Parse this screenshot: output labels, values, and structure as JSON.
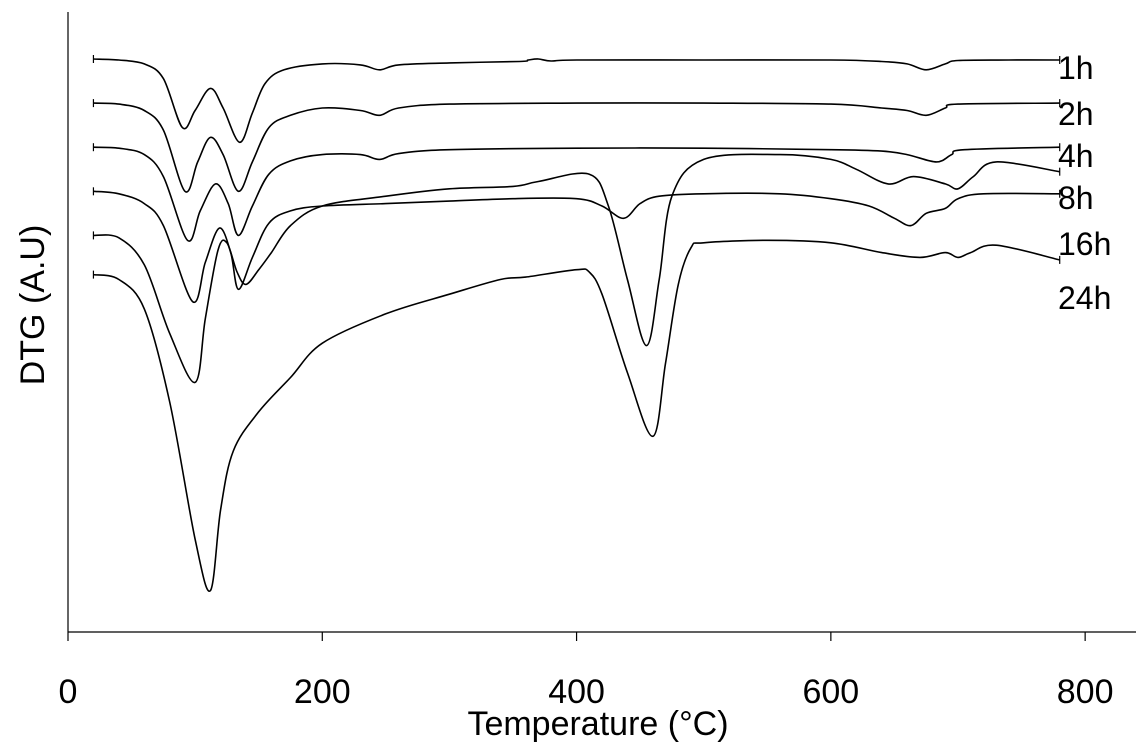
{
  "chart_data": {
    "type": "line",
    "title": "",
    "xlabel": "Temperature (°C)",
    "ylabel": "DTG (A.U)",
    "xlim": [
      0,
      840
    ],
    "ylim": [
      -11.7,
      0.9
    ],
    "x_ticks": [
      0,
      200,
      400,
      600,
      800
    ],
    "x_tick_labels": [
      "0",
      "200",
      "400",
      "600",
      "800"
    ],
    "y_ticks_shown": false,
    "grid": false,
    "legend": "none (series named by labels at right end of each curve)",
    "series": [
      {
        "name": "1h",
        "points": [
          [
            20,
            0.0
          ],
          [
            40,
            -0.02
          ],
          [
            60,
            -0.1
          ],
          [
            75,
            -0.4
          ],
          [
            90,
            -1.4
          ],
          [
            100,
            -1.05
          ],
          [
            112,
            -0.6
          ],
          [
            122,
            -1.0
          ],
          [
            135,
            -1.7
          ],
          [
            145,
            -1.1
          ],
          [
            155,
            -0.5
          ],
          [
            170,
            -0.22
          ],
          [
            200,
            -0.1
          ],
          [
            230,
            -0.12
          ],
          [
            245,
            -0.22
          ],
          [
            260,
            -0.12
          ],
          [
            300,
            -0.08
          ],
          [
            355,
            -0.05
          ],
          [
            362,
            -0.02
          ],
          [
            370,
            0.0
          ],
          [
            380,
            -0.04
          ],
          [
            400,
            -0.02
          ],
          [
            500,
            -0.02
          ],
          [
            600,
            -0.02
          ],
          [
            640,
            -0.05
          ],
          [
            660,
            -0.1
          ],
          [
            675,
            -0.22
          ],
          [
            690,
            -0.1
          ],
          [
            700,
            -0.03
          ],
          [
            740,
            -0.02
          ],
          [
            780,
            -0.02
          ]
        ]
      },
      {
        "name": "2h",
        "points": [
          [
            20,
            -0.9
          ],
          [
            40,
            -0.92
          ],
          [
            60,
            -1.05
          ],
          [
            75,
            -1.45
          ],
          [
            92,
            -2.7
          ],
          [
            102,
            -2.1
          ],
          [
            112,
            -1.6
          ],
          [
            122,
            -1.95
          ],
          [
            134,
            -2.7
          ],
          [
            145,
            -2.1
          ],
          [
            158,
            -1.4
          ],
          [
            175,
            -1.15
          ],
          [
            200,
            -1.0
          ],
          [
            230,
            -1.05
          ],
          [
            245,
            -1.15
          ],
          [
            260,
            -1.0
          ],
          [
            300,
            -0.92
          ],
          [
            400,
            -0.9
          ],
          [
            500,
            -0.9
          ],
          [
            600,
            -0.92
          ],
          [
            640,
            -1.0
          ],
          [
            660,
            -1.05
          ],
          [
            675,
            -1.15
          ],
          [
            690,
            -1.0
          ],
          [
            700,
            -0.92
          ],
          [
            780,
            -0.9
          ]
        ]
      },
      {
        "name": "4h",
        "points": [
          [
            20,
            -1.8
          ],
          [
            40,
            -1.82
          ],
          [
            60,
            -1.95
          ],
          [
            75,
            -2.4
          ],
          [
            94,
            -3.7
          ],
          [
            104,
            -3.1
          ],
          [
            116,
            -2.55
          ],
          [
            126,
            -2.95
          ],
          [
            134,
            -3.6
          ],
          [
            145,
            -3.0
          ],
          [
            158,
            -2.35
          ],
          [
            175,
            -2.08
          ],
          [
            200,
            -1.95
          ],
          [
            230,
            -1.95
          ],
          [
            245,
            -2.05
          ],
          [
            260,
            -1.93
          ],
          [
            300,
            -1.85
          ],
          [
            400,
            -1.82
          ],
          [
            500,
            -1.82
          ],
          [
            600,
            -1.85
          ],
          [
            640,
            -1.88
          ],
          [
            660,
            -1.95
          ],
          [
            683,
            -2.1
          ],
          [
            695,
            -1.95
          ],
          [
            705,
            -1.85
          ],
          [
            780,
            -1.8
          ]
        ]
      },
      {
        "name": "8h",
        "points": [
          [
            20,
            -2.7
          ],
          [
            40,
            -2.75
          ],
          [
            60,
            -2.95
          ],
          [
            75,
            -3.4
          ],
          [
            98,
            -4.95
          ],
          [
            108,
            -4.15
          ],
          [
            119,
            -3.45
          ],
          [
            128,
            -3.95
          ],
          [
            134,
            -4.7
          ],
          [
            145,
            -4.05
          ],
          [
            158,
            -3.35
          ],
          [
            175,
            -3.1
          ],
          [
            200,
            -3.0
          ],
          [
            250,
            -2.95
          ],
          [
            300,
            -2.9
          ],
          [
            350,
            -2.85
          ],
          [
            400,
            -2.85
          ],
          [
            420,
            -3.0
          ],
          [
            437,
            -3.25
          ],
          [
            450,
            -2.95
          ],
          [
            465,
            -2.8
          ],
          [
            500,
            -2.75
          ],
          [
            560,
            -2.75
          ],
          [
            600,
            -2.85
          ],
          [
            630,
            -3.0
          ],
          [
            650,
            -3.25
          ],
          [
            663,
            -3.4
          ],
          [
            675,
            -3.15
          ],
          [
            690,
            -3.05
          ],
          [
            700,
            -2.85
          ],
          [
            720,
            -2.75
          ],
          [
            780,
            -2.75
          ]
        ]
      },
      {
        "name": "16h",
        "points": [
          [
            20,
            -3.6
          ],
          [
            40,
            -3.65
          ],
          [
            60,
            -4.2
          ],
          [
            80,
            -5.6
          ],
          [
            100,
            -6.6
          ],
          [
            108,
            -5.3
          ],
          [
            118,
            -3.9
          ],
          [
            125,
            -3.75
          ],
          [
            133,
            -4.35
          ],
          [
            140,
            -4.6
          ],
          [
            150,
            -4.3
          ],
          [
            160,
            -3.95
          ],
          [
            175,
            -3.4
          ],
          [
            200,
            -3.0
          ],
          [
            250,
            -2.8
          ],
          [
            300,
            -2.65
          ],
          [
            350,
            -2.6
          ],
          [
            370,
            -2.5
          ],
          [
            410,
            -2.35
          ],
          [
            425,
            -3.0
          ],
          [
            440,
            -4.5
          ],
          [
            455,
            -5.85
          ],
          [
            465,
            -4.5
          ],
          [
            475,
            -2.8
          ],
          [
            500,
            -2.05
          ],
          [
            560,
            -1.95
          ],
          [
            600,
            -2.05
          ],
          [
            620,
            -2.25
          ],
          [
            645,
            -2.55
          ],
          [
            665,
            -2.4
          ],
          [
            690,
            -2.55
          ],
          [
            700,
            -2.65
          ],
          [
            712,
            -2.4
          ],
          [
            730,
            -2.1
          ],
          [
            780,
            -2.3
          ]
        ]
      },
      {
        "name": "24h",
        "points": [
          [
            20,
            -4.4
          ],
          [
            40,
            -4.5
          ],
          [
            60,
            -5.1
          ],
          [
            80,
            -7.0
          ],
          [
            100,
            -9.8
          ],
          [
            112,
            -10.85
          ],
          [
            120,
            -9.2
          ],
          [
            130,
            -8.0
          ],
          [
            150,
            -7.2
          ],
          [
            175,
            -6.5
          ],
          [
            200,
            -5.8
          ],
          [
            250,
            -5.2
          ],
          [
            300,
            -4.8
          ],
          [
            340,
            -4.5
          ],
          [
            360,
            -4.45
          ],
          [
            400,
            -4.3
          ],
          [
            410,
            -4.35
          ],
          [
            420,
            -4.8
          ],
          [
            440,
            -6.4
          ],
          [
            460,
            -7.7
          ],
          [
            470,
            -6.2
          ],
          [
            480,
            -4.6
          ],
          [
            490,
            -3.85
          ],
          [
            500,
            -3.75
          ],
          [
            550,
            -3.7
          ],
          [
            600,
            -3.75
          ],
          [
            640,
            -3.95
          ],
          [
            670,
            -4.05
          ],
          [
            690,
            -3.95
          ],
          [
            700,
            -4.05
          ],
          [
            710,
            -3.95
          ],
          [
            730,
            -3.8
          ],
          [
            780,
            -4.1
          ]
        ]
      }
    ]
  }
}
